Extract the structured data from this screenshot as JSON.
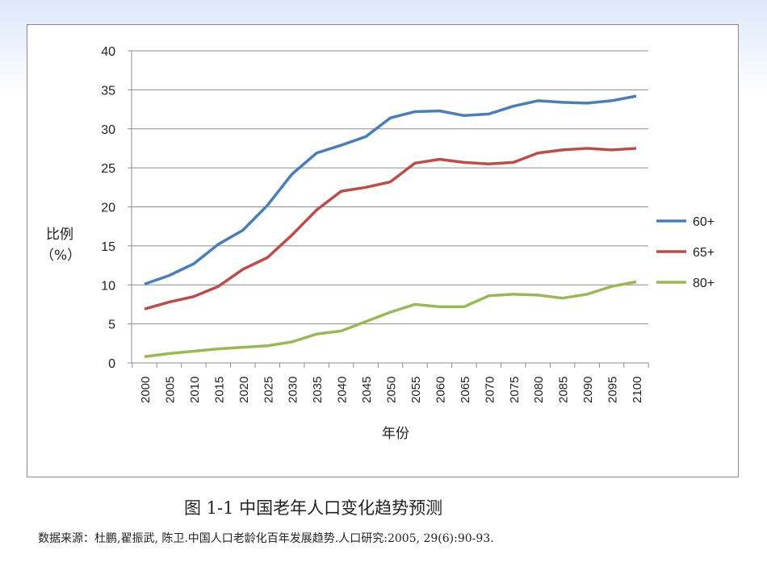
{
  "chart_data": {
    "type": "line",
    "title": "",
    "xlabel": "年份",
    "ylabel": "比例（%）",
    "ylabel_lines": [
      "比例",
      "（%）"
    ],
    "ylim": [
      0,
      40
    ],
    "yticks": [
      0,
      5,
      10,
      15,
      20,
      25,
      30,
      35,
      40
    ],
    "grid": true,
    "legend": "right",
    "x": [
      2000,
      2005,
      2010,
      2015,
      2020,
      2025,
      2030,
      2035,
      2040,
      2045,
      2050,
      2055,
      2060,
      2065,
      2070,
      2075,
      2080,
      2085,
      2090,
      2095,
      2100
    ],
    "series": [
      {
        "name": "60+",
        "color": "#4a7ebb",
        "values": [
          10.1,
          11.2,
          12.7,
          15.2,
          17.0,
          20.2,
          24.2,
          26.9,
          27.9,
          29.0,
          31.4,
          32.2,
          32.3,
          31.7,
          31.9,
          32.9,
          33.6,
          33.4,
          33.3,
          33.6,
          34.2
        ]
      },
      {
        "name": "65+",
        "color": "#be4b48",
        "values": [
          6.9,
          7.8,
          8.5,
          9.8,
          12.0,
          13.5,
          16.4,
          19.6,
          22.0,
          22.5,
          23.2,
          25.6,
          26.1,
          25.7,
          25.5,
          25.7,
          26.9,
          27.3,
          27.5,
          27.3,
          27.5
        ]
      },
      {
        "name": "80+",
        "color": "#98b954",
        "values": [
          0.8,
          1.2,
          1.5,
          1.8,
          2.0,
          2.2,
          2.7,
          3.7,
          4.1,
          5.3,
          6.5,
          7.5,
          7.2,
          7.2,
          8.6,
          8.8,
          8.7,
          8.3,
          8.8,
          9.8,
          10.4
        ]
      }
    ]
  },
  "caption": "图 1-1  中国老年人口变化趋势预测",
  "source": "数据来源：杜鹏,翟振武, 陈卫.中国人口老龄化百年发展趋势.人口研究:2005, 29(6):90-93."
}
